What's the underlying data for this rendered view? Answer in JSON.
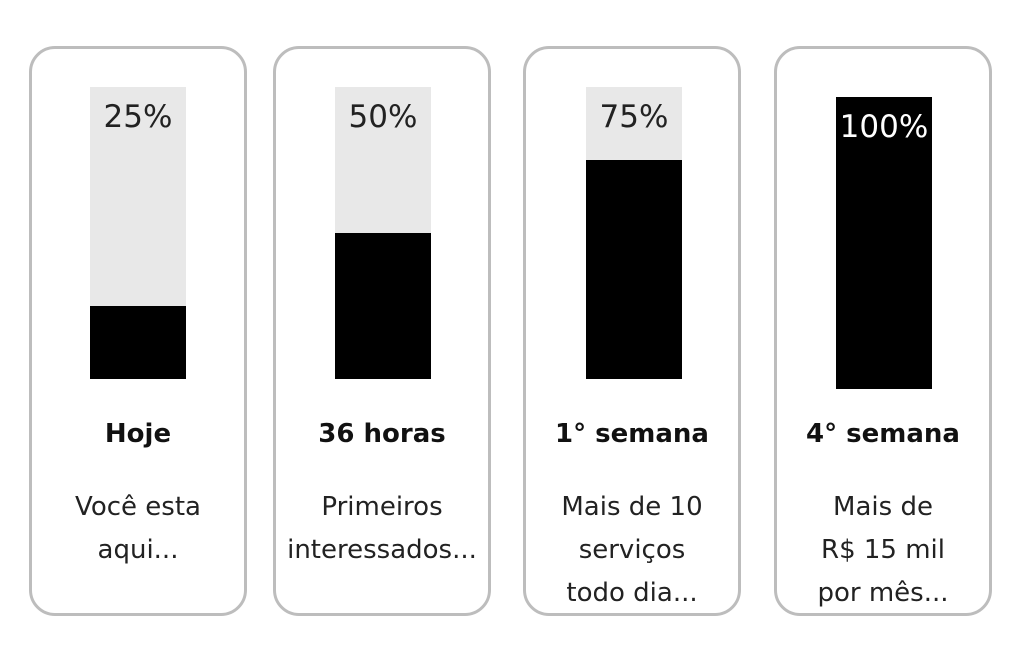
{
  "cards": [
    {
      "percent_label": "25%",
      "progress": 0.25,
      "stage": "Hoje",
      "description_lines": [
        "Você esta",
        "aqui..."
      ]
    },
    {
      "percent_label": "50%",
      "progress": 0.5,
      "stage": "36 horas",
      "description_lines": [
        "Primeiros",
        "interessados..."
      ]
    },
    {
      "percent_label": "75%",
      "progress": 0.75,
      "stage": "1° semana",
      "description_lines": [
        "Mais de 10",
        "serviços",
        "todo dia..."
      ]
    },
    {
      "percent_label": "100%",
      "progress": 1.0,
      "stage": "4° semana",
      "description_lines": [
        "Mais de",
        "R$ 15 mil",
        "por mês..."
      ]
    }
  ],
  "colors": {
    "bar_fill": "#000000",
    "bar_track": "#e8e8e8",
    "card_border": "#bdbdbd"
  }
}
